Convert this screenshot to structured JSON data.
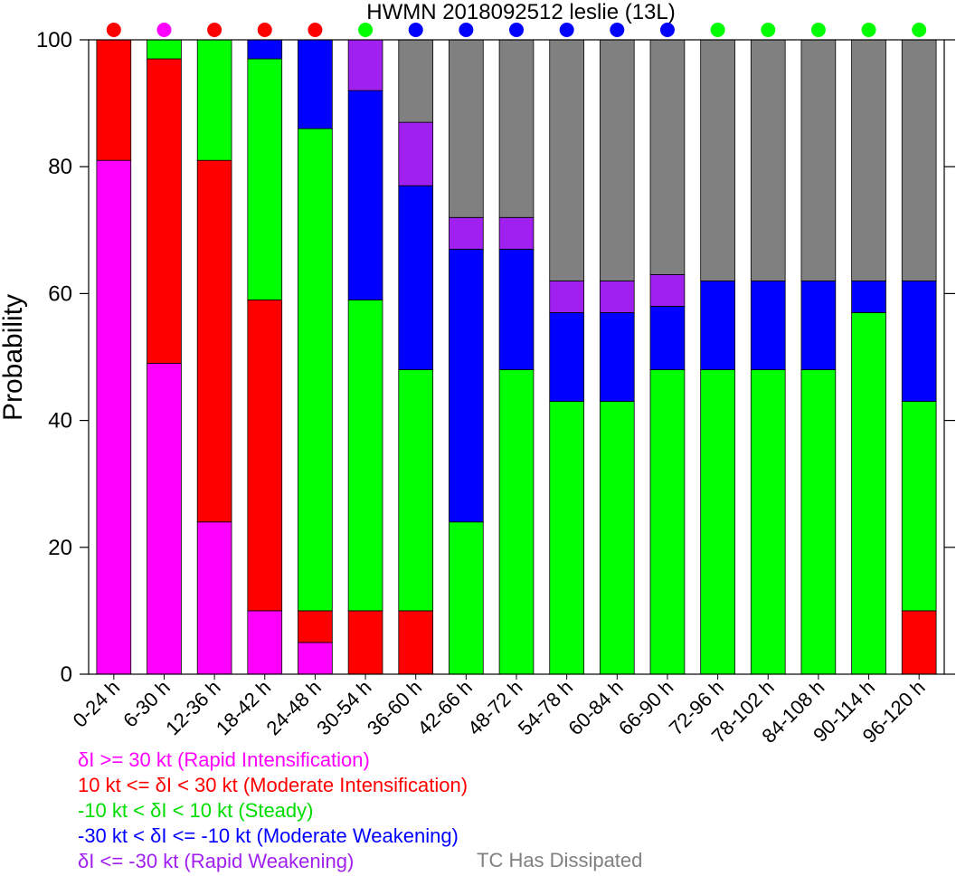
{
  "chart_data": {
    "type": "bar",
    "stacked": true,
    "title": "HWMN 2018092512 leslie (13L)",
    "xlabel": "",
    "ylabel": "Probability",
    "ylim": [
      0,
      100
    ],
    "yticks": [
      0,
      20,
      40,
      60,
      80,
      100
    ],
    "grid": false,
    "categories": [
      "0-24 h",
      "6-30 h",
      "12-36 h",
      "18-42 h",
      "24-48 h",
      "30-54 h",
      "36-60 h",
      "42-66 h",
      "48-72 h",
      "54-78 h",
      "60-84 h",
      "66-90 h",
      "72-96 h",
      "78-102 h",
      "84-108 h",
      "90-114 h",
      "96-120 h"
    ],
    "series": [
      {
        "name": "δI >= 30 kt (Rapid Intensification)",
        "color": "#ff00ff",
        "values": [
          81,
          49,
          24,
          10,
          5,
          0,
          0,
          0,
          0,
          0,
          0,
          0,
          0,
          0,
          0,
          0,
          0
        ]
      },
      {
        "name": "10 kt <= δI < 30 kt (Moderate Intensification)",
        "color": "#ff0000",
        "values": [
          19,
          48,
          57,
          49,
          5,
          10,
          10,
          0,
          0,
          0,
          0,
          0,
          0,
          0,
          0,
          0,
          10
        ]
      },
      {
        "name": "-10 kt < δI < 10 kt (Steady)",
        "color": "#00ff00",
        "values": [
          0,
          3,
          19,
          38,
          76,
          49,
          38,
          24,
          48,
          43,
          43,
          48,
          48,
          48,
          48,
          57,
          33
        ]
      },
      {
        "name": "-30 kt < δI <= -10 kt (Moderate Weakening)",
        "color": "#0000ff",
        "values": [
          0,
          0,
          0,
          3,
          14,
          33,
          29,
          43,
          19,
          14,
          14,
          10,
          14,
          14,
          14,
          5,
          19
        ]
      },
      {
        "name": "δI <= -30 kt (Rapid Weakening)",
        "color": "#a020f0",
        "values": [
          0,
          0,
          0,
          0,
          0,
          8,
          10,
          5,
          5,
          5,
          5,
          5,
          0,
          0,
          0,
          0,
          0
        ]
      },
      {
        "name": "TC Has Dissipated",
        "color": "#808080",
        "values": [
          0,
          0,
          0,
          0,
          0,
          0,
          13,
          28,
          28,
          38,
          38,
          37,
          38,
          38,
          38,
          38,
          38
        ]
      }
    ],
    "top_markers": [
      "#ff0000",
      "#ff00ff",
      "#ff0000",
      "#ff0000",
      "#ff0000",
      "#00ff00",
      "#0000ff",
      "#0000ff",
      "#0000ff",
      "#0000ff",
      "#0000ff",
      "#0000ff",
      "#00ff00",
      "#00ff00",
      "#00ff00",
      "#00ff00",
      "#00ff00"
    ]
  },
  "legend": {
    "placement": "bottom-left"
  }
}
